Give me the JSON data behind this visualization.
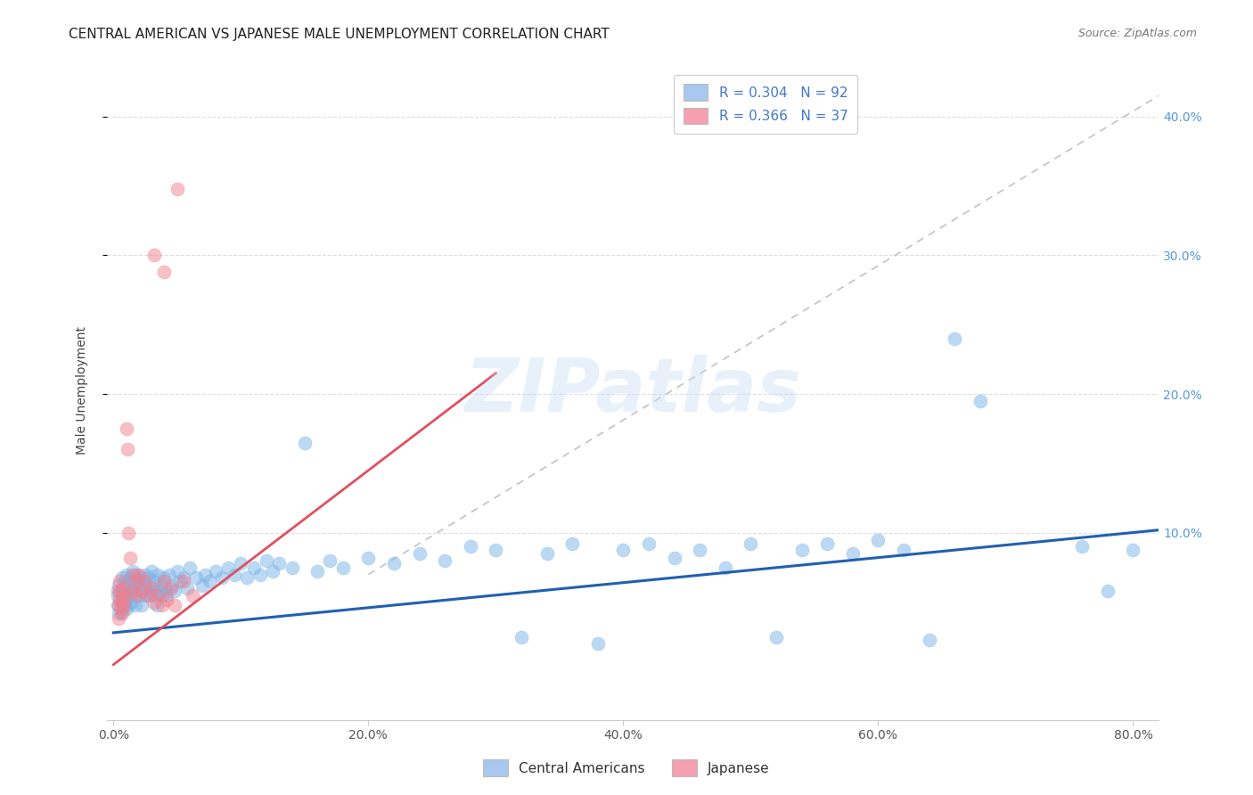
{
  "title": "CENTRAL AMERICAN VS JAPANESE MALE UNEMPLOYMENT CORRELATION CHART",
  "source": "Source: ZipAtlas.com",
  "ylabel": "Male Unemployment",
  "xlim": [
    -0.005,
    0.82
  ],
  "ylim": [
    -0.035,
    0.44
  ],
  "xticks": [
    0.0,
    0.2,
    0.4,
    0.6,
    0.8
  ],
  "xtick_labels": [
    "0.0%",
    "20.0%",
    "40.0%",
    "60.0%",
    "80.0%"
  ],
  "ytick_vals": [
    0.1,
    0.2,
    0.3,
    0.4
  ],
  "ytick_labels": [
    "10.0%",
    "20.0%",
    "30.0%",
    "40.0%"
  ],
  "watermark": "ZIPatlas",
  "blue_line": {
    "x0": 0.0,
    "y0": 0.028,
    "x1": 0.82,
    "y1": 0.102
  },
  "pink_line": {
    "x0": 0.0,
    "y0": 0.005,
    "x1": 0.3,
    "y1": 0.215
  },
  "gray_dashed_line": {
    "x0": 0.2,
    "y0": 0.07,
    "x1": 0.82,
    "y1": 0.415
  },
  "blue_scatter": [
    [
      0.003,
      0.055
    ],
    [
      0.003,
      0.048
    ],
    [
      0.004,
      0.062
    ],
    [
      0.004,
      0.042
    ],
    [
      0.005,
      0.058
    ],
    [
      0.006,
      0.05
    ],
    [
      0.006,
      0.043
    ],
    [
      0.007,
      0.068
    ],
    [
      0.007,
      0.055
    ],
    [
      0.008,
      0.06
    ],
    [
      0.008,
      0.047
    ],
    [
      0.009,
      0.065
    ],
    [
      0.009,
      0.052
    ],
    [
      0.01,
      0.07
    ],
    [
      0.01,
      0.058
    ],
    [
      0.01,
      0.045
    ],
    [
      0.011,
      0.063
    ],
    [
      0.012,
      0.055
    ],
    [
      0.012,
      0.048
    ],
    [
      0.013,
      0.068
    ],
    [
      0.013,
      0.057
    ],
    [
      0.014,
      0.062
    ],
    [
      0.014,
      0.05
    ],
    [
      0.015,
      0.072
    ],
    [
      0.015,
      0.06
    ],
    [
      0.016,
      0.065
    ],
    [
      0.017,
      0.057
    ],
    [
      0.017,
      0.048
    ],
    [
      0.018,
      0.07
    ],
    [
      0.019,
      0.06
    ],
    [
      0.02,
      0.068
    ],
    [
      0.02,
      0.055
    ],
    [
      0.021,
      0.062
    ],
    [
      0.022,
      0.058
    ],
    [
      0.022,
      0.048
    ],
    [
      0.023,
      0.065
    ],
    [
      0.024,
      0.06
    ],
    [
      0.025,
      0.07
    ],
    [
      0.025,
      0.055
    ],
    [
      0.026,
      0.062
    ],
    [
      0.027,
      0.058
    ],
    [
      0.028,
      0.068
    ],
    [
      0.029,
      0.055
    ],
    [
      0.03,
      0.072
    ],
    [
      0.031,
      0.06
    ],
    [
      0.032,
      0.065
    ],
    [
      0.033,
      0.055
    ],
    [
      0.034,
      0.048
    ],
    [
      0.035,
      0.07
    ],
    [
      0.036,
      0.058
    ],
    [
      0.037,
      0.062
    ],
    [
      0.038,
      0.055
    ],
    [
      0.04,
      0.068
    ],
    [
      0.041,
      0.06
    ],
    [
      0.042,
      0.055
    ],
    [
      0.044,
      0.07
    ],
    [
      0.046,
      0.062
    ],
    [
      0.048,
      0.058
    ],
    [
      0.05,
      0.072
    ],
    [
      0.052,
      0.065
    ],
    [
      0.055,
      0.068
    ],
    [
      0.058,
      0.06
    ],
    [
      0.06,
      0.075
    ],
    [
      0.065,
      0.068
    ],
    [
      0.07,
      0.062
    ],
    [
      0.072,
      0.07
    ],
    [
      0.075,
      0.065
    ],
    [
      0.08,
      0.072
    ],
    [
      0.085,
      0.068
    ],
    [
      0.09,
      0.075
    ],
    [
      0.095,
      0.07
    ],
    [
      0.1,
      0.078
    ],
    [
      0.105,
      0.068
    ],
    [
      0.11,
      0.075
    ],
    [
      0.115,
      0.07
    ],
    [
      0.12,
      0.08
    ],
    [
      0.125,
      0.072
    ],
    [
      0.13,
      0.078
    ],
    [
      0.14,
      0.075
    ],
    [
      0.15,
      0.165
    ],
    [
      0.16,
      0.072
    ],
    [
      0.17,
      0.08
    ],
    [
      0.18,
      0.075
    ],
    [
      0.2,
      0.082
    ],
    [
      0.22,
      0.078
    ],
    [
      0.24,
      0.085
    ],
    [
      0.26,
      0.08
    ],
    [
      0.28,
      0.09
    ],
    [
      0.3,
      0.088
    ],
    [
      0.32,
      0.025
    ],
    [
      0.34,
      0.085
    ],
    [
      0.36,
      0.092
    ],
    [
      0.38,
      0.02
    ],
    [
      0.4,
      0.088
    ],
    [
      0.42,
      0.092
    ],
    [
      0.44,
      0.082
    ],
    [
      0.46,
      0.088
    ],
    [
      0.48,
      0.075
    ],
    [
      0.5,
      0.092
    ],
    [
      0.52,
      0.025
    ],
    [
      0.54,
      0.088
    ],
    [
      0.56,
      0.092
    ],
    [
      0.58,
      0.085
    ],
    [
      0.6,
      0.095
    ],
    [
      0.62,
      0.088
    ],
    [
      0.64,
      0.023
    ],
    [
      0.66,
      0.24
    ],
    [
      0.68,
      0.195
    ],
    [
      0.76,
      0.09
    ],
    [
      0.78,
      0.058
    ],
    [
      0.8,
      0.088
    ]
  ],
  "pink_scatter": [
    [
      0.003,
      0.058
    ],
    [
      0.004,
      0.048
    ],
    [
      0.004,
      0.038
    ],
    [
      0.005,
      0.065
    ],
    [
      0.005,
      0.052
    ],
    [
      0.006,
      0.045
    ],
    [
      0.006,
      0.058
    ],
    [
      0.007,
      0.052
    ],
    [
      0.007,
      0.042
    ],
    [
      0.008,
      0.06
    ],
    [
      0.008,
      0.048
    ],
    [
      0.009,
      0.055
    ],
    [
      0.01,
      0.175
    ],
    [
      0.011,
      0.16
    ],
    [
      0.012,
      0.1
    ],
    [
      0.013,
      0.082
    ],
    [
      0.015,
      0.07
    ],
    [
      0.016,
      0.058
    ],
    [
      0.017,
      0.065
    ],
    [
      0.018,
      0.055
    ],
    [
      0.02,
      0.07
    ],
    [
      0.022,
      0.058
    ],
    [
      0.025,
      0.065
    ],
    [
      0.027,
      0.055
    ],
    [
      0.03,
      0.06
    ],
    [
      0.032,
      0.05
    ],
    [
      0.035,
      0.055
    ],
    [
      0.038,
      0.048
    ],
    [
      0.04,
      0.065
    ],
    [
      0.042,
      0.052
    ],
    [
      0.045,
      0.06
    ],
    [
      0.048,
      0.048
    ],
    [
      0.055,
      0.065
    ],
    [
      0.062,
      0.055
    ],
    [
      0.032,
      0.3
    ],
    [
      0.04,
      0.288
    ],
    [
      0.05,
      0.348
    ]
  ],
  "blue_color": "#7ab4e8",
  "pink_color": "#f08090",
  "blue_line_color": "#2060b0",
  "pink_line_color": "#e05060",
  "gray_dashed_color": "#c8c0c0",
  "title_fontsize": 11,
  "axis_label_fontsize": 10,
  "tick_fontsize": 10,
  "background_color": "#ffffff",
  "grid_color": "#dcdce8"
}
